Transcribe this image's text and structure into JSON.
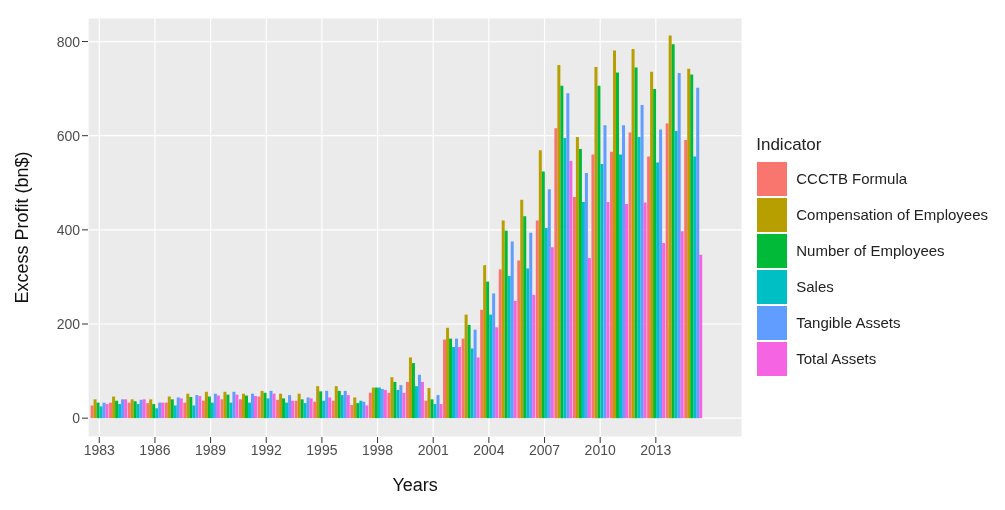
{
  "chart_data": {
    "type": "bar",
    "xlabel": "Years",
    "ylabel": "Excess Profit (bn$)",
    "legend_title": "Indicator",
    "legend": "right",
    "grid": true,
    "categories": [
      "1983",
      null,
      null,
      "1986",
      null,
      null,
      "1989",
      null,
      null,
      "1992",
      null,
      null,
      "1995",
      null,
      null,
      "1998",
      null,
      null,
      "2001",
      null,
      null,
      "2004",
      null,
      null,
      "2007",
      null,
      null,
      "2010",
      null,
      null,
      "2013",
      null,
      null
    ],
    "ylim": [
      -40,
      850
    ],
    "yticks": [
      0,
      200,
      400,
      600,
      800
    ],
    "series": [
      {
        "name": "CCCTB Formula",
        "color": "#f8766d",
        "values": [
          27,
          33,
          33,
          32,
          33,
          33,
          37,
          40,
          40,
          46,
          39,
          37,
          35,
          37,
          28,
          54,
          54,
          77,
          37,
          167,
          169,
          230,
          316,
          335,
          420,
          616,
          470,
          560,
          566,
          607,
          556,
          626,
          591
        ]
      },
      {
        "name": "Compensation of Employees",
        "color": "#b79f00",
        "values": [
          40,
          46,
          40,
          40,
          46,
          52,
          56,
          56,
          52,
          58,
          52,
          52,
          68,
          68,
          44,
          65,
          87,
          129,
          64,
          192,
          220,
          325,
          420,
          464,
          569,
          750,
          597,
          746,
          781,
          784,
          736,
          813,
          742
        ]
      },
      {
        "name": "Number of Employees",
        "color": "#00ba38",
        "values": [
          33,
          37,
          36,
          30,
          40,
          45,
          46,
          50,
          48,
          54,
          42,
          40,
          57,
          58,
          32,
          65,
          77,
          117,
          40,
          169,
          198,
          290,
          398,
          429,
          524,
          706,
          572,
          706,
          734,
          745,
          699,
          794,
          730
        ]
      },
      {
        "name": "Sales",
        "color": "#00bfc4",
        "values": [
          25,
          30,
          30,
          21,
          27,
          27,
          33,
          33,
          33,
          42,
          33,
          32,
          37,
          49,
          37,
          65,
          60,
          68,
          30,
          151,
          148,
          220,
          302,
          318,
          404,
          595,
          459,
          540,
          560,
          597,
          543,
          610,
          556
        ]
      },
      {
        "name": "Tangible Assets",
        "color": "#619cff",
        "values": [
          33,
          40,
          39,
          33,
          44,
          49,
          52,
          56,
          52,
          58,
          49,
          44,
          58,
          58,
          35,
          62,
          70,
          92,
          49,
          169,
          188,
          265,
          375,
          394,
          486,
          690,
          521,
          622,
          622,
          665,
          613,
          733,
          702
        ]
      },
      {
        "name": "Total Assets",
        "color": "#f564e3",
        "values": [
          30,
          40,
          40,
          33,
          42,
          47,
          48,
          50,
          47,
          52,
          37,
          42,
          44,
          49,
          27,
          60,
          54,
          77,
          30,
          151,
          129,
          193,
          249,
          262,
          363,
          546,
          340,
          459,
          455,
          458,
          372,
          397,
          347
        ]
      }
    ]
  }
}
